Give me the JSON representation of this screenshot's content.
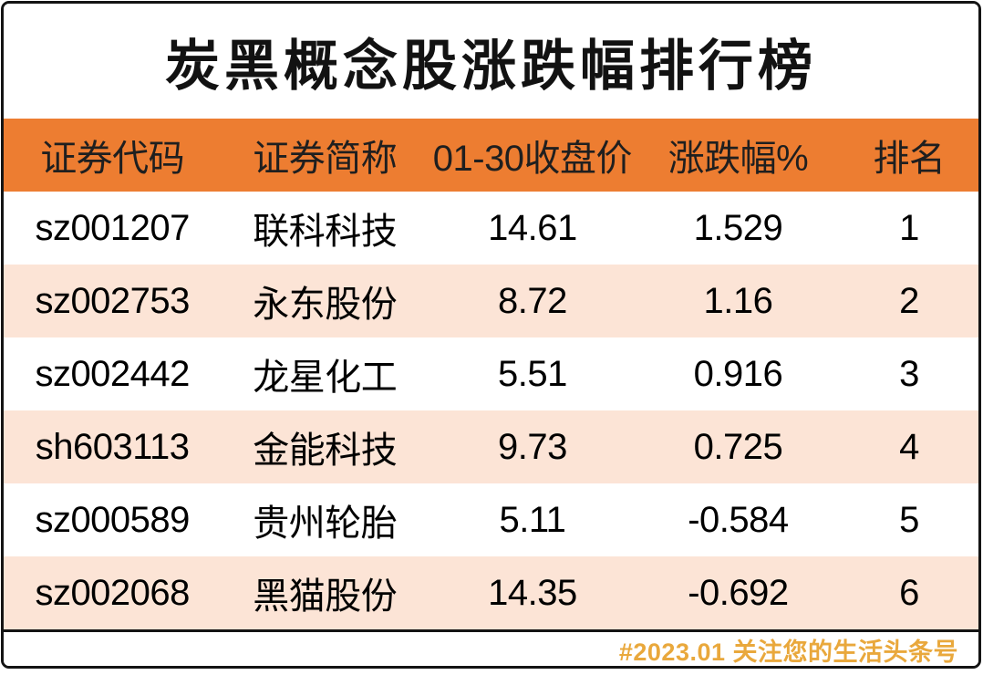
{
  "title": "炭黑概念股涨跌幅排行榜",
  "table": {
    "headers": {
      "code": "证券代码",
      "name": "证券简称",
      "close": "01-30收盘价",
      "change": "涨跌幅%",
      "rank": "排名"
    },
    "rows": [
      {
        "code": "sz001207",
        "name": "联科科技",
        "close": "14.61",
        "change": "1.529",
        "rank": "1"
      },
      {
        "code": "sz002753",
        "name": "永东股份",
        "close": "8.72",
        "change": "1.16",
        "rank": "2"
      },
      {
        "code": "sz002442",
        "name": "龙星化工",
        "close": "5.51",
        "change": "0.916",
        "rank": "3"
      },
      {
        "code": "sh603113",
        "name": "金能科技",
        "close": "9.73",
        "change": "0.725",
        "rank": "4"
      },
      {
        "code": "sz000589",
        "name": "贵州轮胎",
        "close": "5.11",
        "change": "-0.584",
        "rank": "5"
      },
      {
        "code": "sz002068",
        "name": "黑猫股份",
        "close": "14.35",
        "change": "-0.692",
        "rank": "6"
      }
    ]
  },
  "footer": {
    "credit": "#2023.01 关注您的生活头条号"
  },
  "colors": {
    "header_bg": "#ED7D31",
    "row_bg": "#FFFFFF",
    "row_alt_bg": "#FCE4D6",
    "header_text": "#1F1F1F",
    "body_text": "#000000",
    "footer_text": "#E9A83C",
    "border": "#141414"
  },
  "chart_data": {
    "type": "table",
    "title": "炭黑概念股涨跌幅排行榜",
    "columns": [
      "证券代码",
      "证券简称",
      "01-30收盘价",
      "涨跌幅%",
      "排名"
    ],
    "rows": [
      [
        "sz001207",
        "联科科技",
        14.61,
        1.529,
        1
      ],
      [
        "sz002753",
        "永东股份",
        8.72,
        1.16,
        2
      ],
      [
        "sz002442",
        "龙星化工",
        5.51,
        0.916,
        3
      ],
      [
        "sh603113",
        "金能科技",
        9.73,
        0.725,
        4
      ],
      [
        "sz000589",
        "贵州轮胎",
        5.11,
        -0.584,
        5
      ],
      [
        "sz002068",
        "黑猫股份",
        14.35,
        -0.692,
        6
      ]
    ],
    "footer": "#2023.01 关注您的生活头条号",
    "layout": {
      "striped": true,
      "stripe_colors": [
        "#FFFFFF",
        "#FCE4D6"
      ],
      "header_color": "#ED7D31"
    }
  }
}
